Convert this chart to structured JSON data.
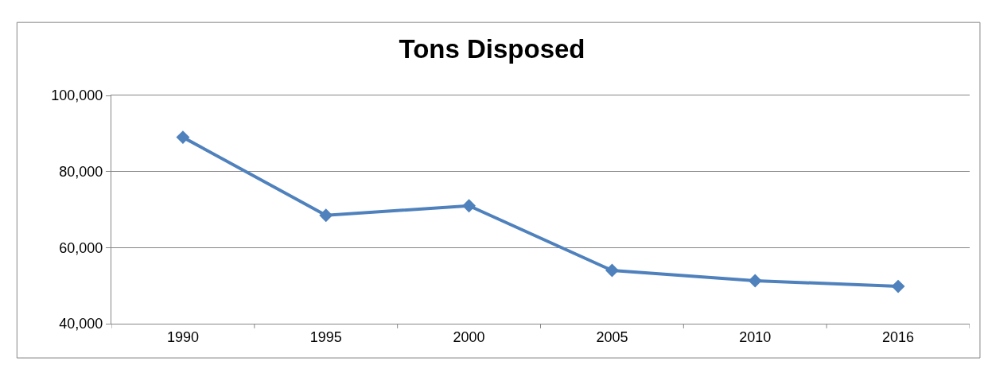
{
  "chart_data": {
    "type": "line",
    "title": "Tons Disposed",
    "categories": [
      "1990",
      "1995",
      "2000",
      "2005",
      "2010",
      "2016"
    ],
    "series": [
      {
        "color": "#4f81bd",
        "values": [
          89000,
          68500,
          71000,
          54000,
          51300,
          49800
        ]
      }
    ],
    "ylim": [
      40000,
      100000
    ],
    "yticks": [
      {
        "value": 40000,
        "label": "40,000"
      },
      {
        "value": 60000,
        "label": "60,000"
      },
      {
        "value": 80000,
        "label": "80,000"
      },
      {
        "value": 100000,
        "label": "100,000"
      }
    ],
    "grid": "y",
    "marker": "diamond",
    "line_style": "solid"
  }
}
